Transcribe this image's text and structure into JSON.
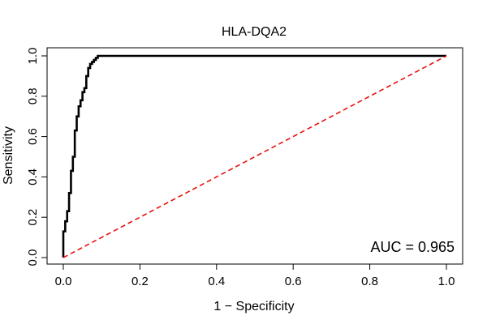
{
  "chart_data": {
    "type": "line",
    "title": "HLA-DQA2",
    "xlabel": "1 − Specificity",
    "ylabel": "Sensitivity",
    "xlim": [
      0,
      1
    ],
    "ylim": [
      0,
      1
    ],
    "x_ticks": [
      "0.0",
      "0.2",
      "0.4",
      "0.6",
      "0.8",
      "1.0"
    ],
    "y_ticks": [
      "0.0",
      "0.2",
      "0.4",
      "0.6",
      "0.8",
      "1.0"
    ],
    "grid": false,
    "legend": "none",
    "series": [
      {
        "color": "#000000",
        "style": "solid-step",
        "x": [
          0.0,
          0.0,
          0.005,
          0.005,
          0.01,
          0.01,
          0.015,
          0.015,
          0.02,
          0.02,
          0.025,
          0.025,
          0.03,
          0.03,
          0.035,
          0.035,
          0.04,
          0.04,
          0.045,
          0.045,
          0.05,
          0.05,
          0.055,
          0.055,
          0.06,
          0.06,
          0.065,
          0.065,
          0.07,
          0.07,
          0.075,
          0.075,
          0.08,
          0.08,
          0.085,
          0.085,
          0.09,
          0.09,
          1.0
        ],
        "y": [
          0.0,
          0.13,
          0.13,
          0.18,
          0.18,
          0.23,
          0.23,
          0.32,
          0.32,
          0.43,
          0.43,
          0.5,
          0.5,
          0.63,
          0.63,
          0.7,
          0.7,
          0.75,
          0.75,
          0.78,
          0.78,
          0.82,
          0.82,
          0.84,
          0.84,
          0.9,
          0.9,
          0.94,
          0.94,
          0.96,
          0.96,
          0.97,
          0.97,
          0.98,
          0.98,
          0.99,
          0.99,
          1.0,
          1.0
        ]
      },
      {
        "color": "#e8100c",
        "style": "dashed",
        "x": [
          0,
          1
        ],
        "y": [
          0,
          1
        ]
      }
    ],
    "annotation": "AUC = 0.965"
  }
}
